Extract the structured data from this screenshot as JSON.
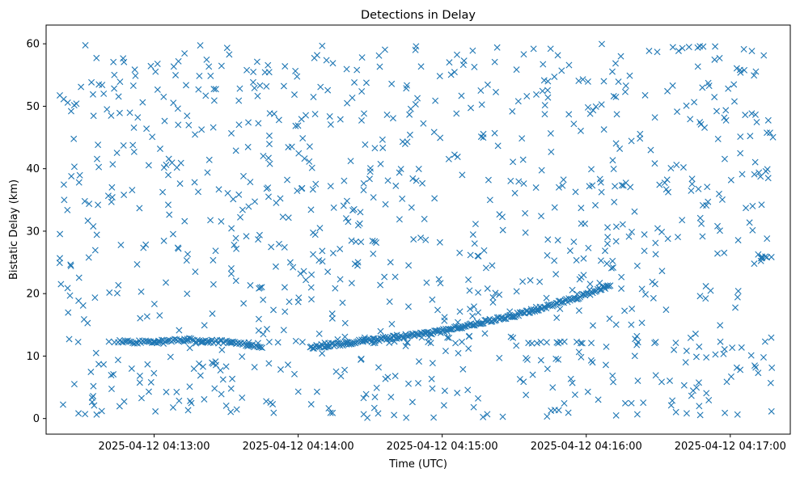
{
  "chart_data": {
    "type": "scatter",
    "title": "Detections in Delay",
    "xlabel": "Time (UTC)",
    "ylabel": "Bistatic Delay (km)",
    "marker": "x",
    "marker_color": "#1f77b4",
    "grid": false,
    "xlim": [
      "2025-04-12 04:12:15",
      "2025-04-12 04:17:25"
    ],
    "ylim": [
      -2.5,
      63
    ],
    "xticks": [
      "2025-04-12 04:13:00",
      "2025-04-12 04:14:00",
      "2025-04-12 04:15:00",
      "2025-04-12 04:16:00",
      "2025-04-12 04:17:00"
    ],
    "yticks": [
      "0",
      "10",
      "20",
      "30",
      "40",
      "50",
      "60"
    ],
    "track_segments": [
      {
        "t": [
          "2025-04-12 04:12:45",
          "2025-04-12 04:13:00",
          "2025-04-12 04:13:15",
          "2025-04-12 04:13:30",
          "2025-04-12 04:13:45"
        ],
        "y": [
          12.3,
          12.2,
          12.6,
          12.2,
          11.6
        ],
        "points": 90
      },
      {
        "t": [
          "2025-04-12 04:14:05",
          "2025-04-12 04:14:30",
          "2025-04-12 04:15:00",
          "2025-04-12 04:15:30",
          "2025-04-12 04:16:00",
          "2025-04-12 04:16:10"
        ],
        "y": [
          11.4,
          12.5,
          14.0,
          16.5,
          19.8,
          21.4
        ],
        "points": 240
      }
    ],
    "clutter": {
      "y_range": [
        0,
        60
      ],
      "approx_points": 950,
      "lines": [
        {
          "t_range": [
            "2025-04-12 04:12:20",
            "2025-04-12 04:17:18"
          ],
          "y": 12.2,
          "points": 45
        },
        {
          "t_range": [
            "2025-04-12 04:17:10",
            "2025-04-12 04:17:18"
          ],
          "y": 25.8,
          "points": 6
        }
      ]
    }
  }
}
